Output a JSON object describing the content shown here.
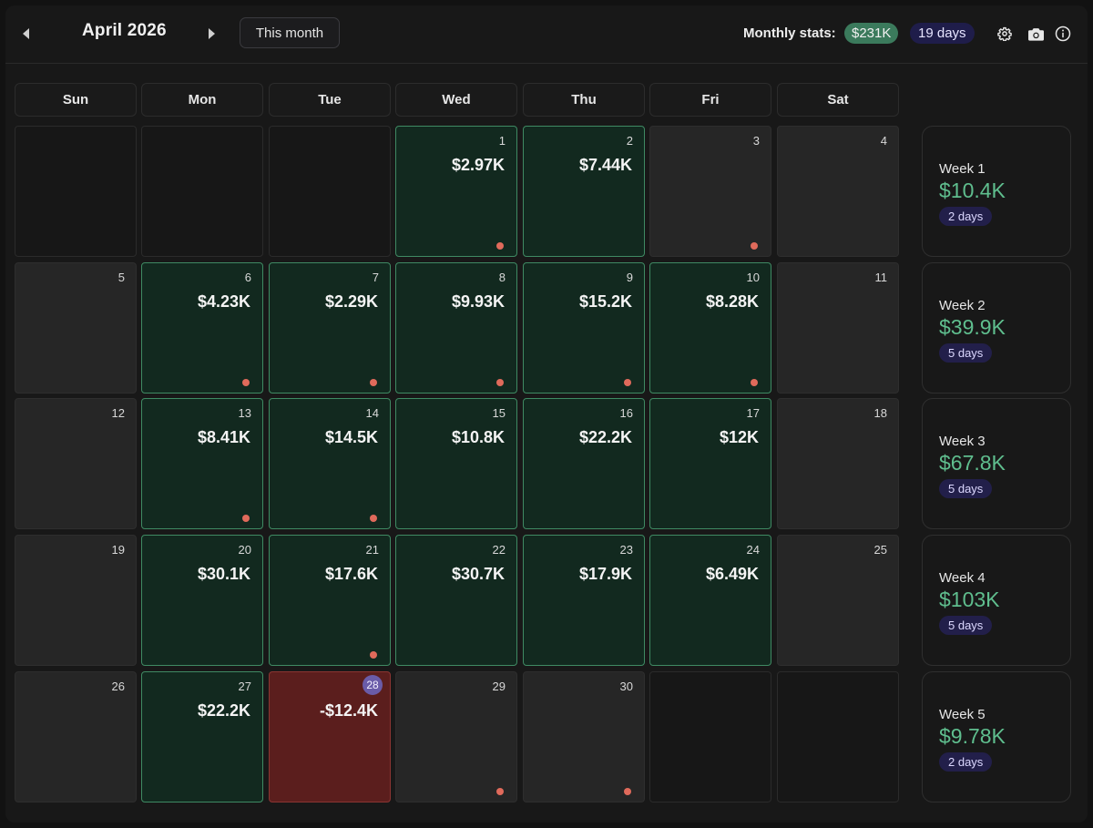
{
  "header": {
    "month": "April 2026",
    "this_month_label": "This month",
    "stats_label": "Monthly stats:",
    "total": "$231K",
    "days": "19 days",
    "colors": {
      "profit": "#3b7a5c",
      "loss": "#5b1e1d",
      "accent": "#6a5ca8"
    }
  },
  "weekdays": [
    "Sun",
    "Mon",
    "Tue",
    "Wed",
    "Thu",
    "Fri",
    "Sat"
  ],
  "calendar": {
    "days": {
      "d1": {
        "num": "1",
        "amount": "$2.97K"
      },
      "d2": {
        "num": "2",
        "amount": "$7.44K"
      },
      "d3": {
        "num": "3"
      },
      "d4": {
        "num": "4"
      },
      "d5": {
        "num": "5"
      },
      "d6": {
        "num": "6",
        "amount": "$4.23K"
      },
      "d7": {
        "num": "7",
        "amount": "$2.29K"
      },
      "d8": {
        "num": "8",
        "amount": "$9.93K"
      },
      "d9": {
        "num": "9",
        "amount": "$15.2K"
      },
      "d10": {
        "num": "10",
        "amount": "$8.28K"
      },
      "d11": {
        "num": "11"
      },
      "d12": {
        "num": "12"
      },
      "d13": {
        "num": "13",
        "amount": "$8.41K"
      },
      "d14": {
        "num": "14",
        "amount": "$14.5K"
      },
      "d15": {
        "num": "15",
        "amount": "$10.8K"
      },
      "d16": {
        "num": "16",
        "amount": "$22.2K"
      },
      "d17": {
        "num": "17",
        "amount": "$12K"
      },
      "d18": {
        "num": "18"
      },
      "d19": {
        "num": "19"
      },
      "d20": {
        "num": "20",
        "amount": "$30.1K"
      },
      "d21": {
        "num": "21",
        "amount": "$17.6K"
      },
      "d22": {
        "num": "22",
        "amount": "$30.7K"
      },
      "d23": {
        "num": "23",
        "amount": "$17.9K"
      },
      "d24": {
        "num": "24",
        "amount": "$6.49K"
      },
      "d25": {
        "num": "25"
      },
      "d26": {
        "num": "26"
      },
      "d27": {
        "num": "27",
        "amount": "$22.2K"
      },
      "d28": {
        "num": "28",
        "amount": "-$12.4K"
      },
      "d29": {
        "num": "29"
      },
      "d30": {
        "num": "30"
      }
    }
  },
  "weeks": [
    {
      "label": "Week 1",
      "amount": "$10.4K",
      "days": "2 days"
    },
    {
      "label": "Week 2",
      "amount": "$39.9K",
      "days": "5 days"
    },
    {
      "label": "Week 3",
      "amount": "$67.8K",
      "days": "5 days"
    },
    {
      "label": "Week 4",
      "amount": "$103K",
      "days": "5 days"
    },
    {
      "label": "Week 5",
      "amount": "$9.78K",
      "days": "2 days"
    }
  ],
  "icons": {
    "prev": "caret-left-icon",
    "next": "caret-right-icon",
    "settings": "gear-icon",
    "camera": "camera-icon",
    "info": "info-icon"
  }
}
